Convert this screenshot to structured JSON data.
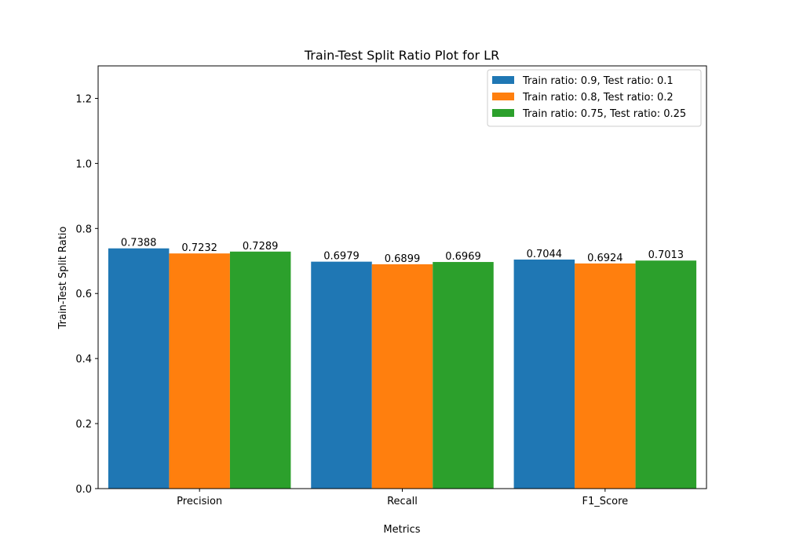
{
  "chart_data": {
    "type": "bar",
    "title": "Train-Test Split Ratio Plot for LR",
    "xlabel": "Metrics",
    "ylabel": "Train-Test Split Ratio",
    "categories": [
      "Precision",
      "Recall",
      "F1_Score"
    ],
    "ylim": [
      0,
      1.3
    ],
    "yticks": [
      "0.0",
      "0.2",
      "0.4",
      "0.6",
      "0.8",
      "1.0",
      "1.2"
    ],
    "grid": false,
    "legend_position": "top-right",
    "series": [
      {
        "name": "Train ratio: 0.9, Test ratio: 0.1",
        "color": "#1f77b4",
        "values": [
          0.7388,
          0.6979,
          0.7044
        ],
        "labels": [
          "0.7388",
          "0.6979",
          "0.7044"
        ]
      },
      {
        "name": "Train ratio: 0.8, Test ratio: 0.2",
        "color": "#ff7f0e",
        "values": [
          0.7232,
          0.6899,
          0.6924
        ],
        "labels": [
          "0.7232",
          "0.6899",
          "0.6924"
        ]
      },
      {
        "name": "Train ratio: 0.75, Test ratio: 0.25",
        "color": "#2ca02c",
        "values": [
          0.7289,
          0.6969,
          0.7013
        ],
        "labels": [
          "0.7289",
          "0.6969",
          "0.7013"
        ]
      }
    ]
  }
}
